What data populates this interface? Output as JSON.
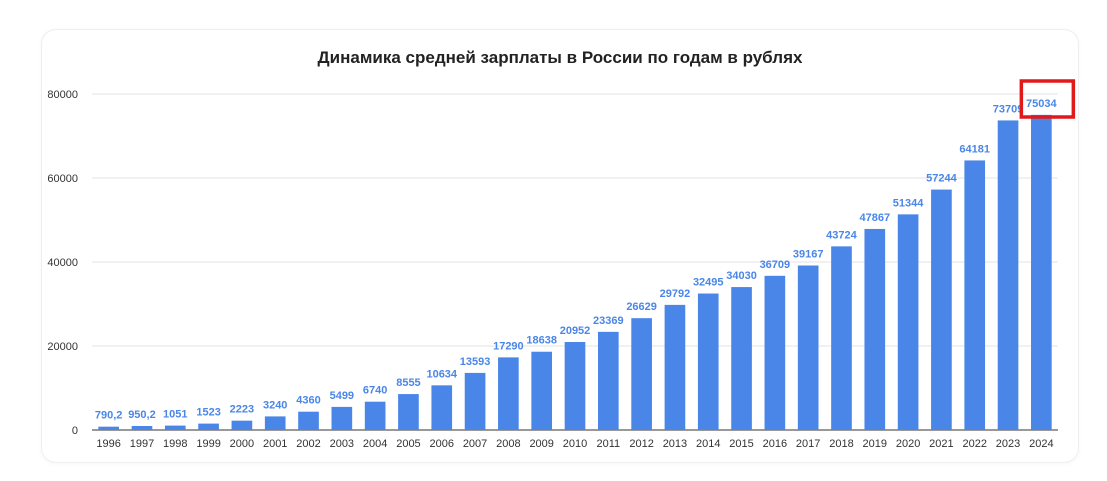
{
  "chart_data": {
    "type": "bar",
    "title": "Динамика средней зарплаты в России по годам в рублях",
    "xlabel": "",
    "ylabel": "",
    "ylim": [
      0,
      80000
    ],
    "yticks": [
      0,
      20000,
      40000,
      60000,
      80000
    ],
    "grid": true,
    "legend": "none",
    "bar_color": "#4a86e8",
    "label_color": "#4a86e8",
    "highlight_color": "#e0191b",
    "highlighted_category": "2024",
    "categories": [
      "1996",
      "1997",
      "1998",
      "1999",
      "2000",
      "2001",
      "2002",
      "2003",
      "2004",
      "2005",
      "2006",
      "2007",
      "2008",
      "2009",
      "2010",
      "2011",
      "2012",
      "2013",
      "2014",
      "2015",
      "2016",
      "2017",
      "2018",
      "2019",
      "2020",
      "2021",
      "2022",
      "2023",
      "2024"
    ],
    "values": [
      790.2,
      950.2,
      1051,
      1523,
      2223,
      3240,
      4360,
      5499,
      6740,
      8555,
      10634,
      13593,
      17290,
      18638,
      20952,
      23369,
      26629,
      29792,
      32495,
      34030,
      36709,
      39167,
      43724,
      47867,
      51344,
      57244,
      64181,
      73709,
      75034
    ],
    "data_labels": [
      "790,2",
      "950,2",
      "1051",
      "1523",
      "2223",
      "3240",
      "4360",
      "5499",
      "6740",
      "8555",
      "10634",
      "13593",
      "17290",
      "18638",
      "20952",
      "23369",
      "26629",
      "29792",
      "32495",
      "34030",
      "36709",
      "39167",
      "43724",
      "47867",
      "51344",
      "57244",
      "64181",
      "73709",
      "75034"
    ]
  }
}
